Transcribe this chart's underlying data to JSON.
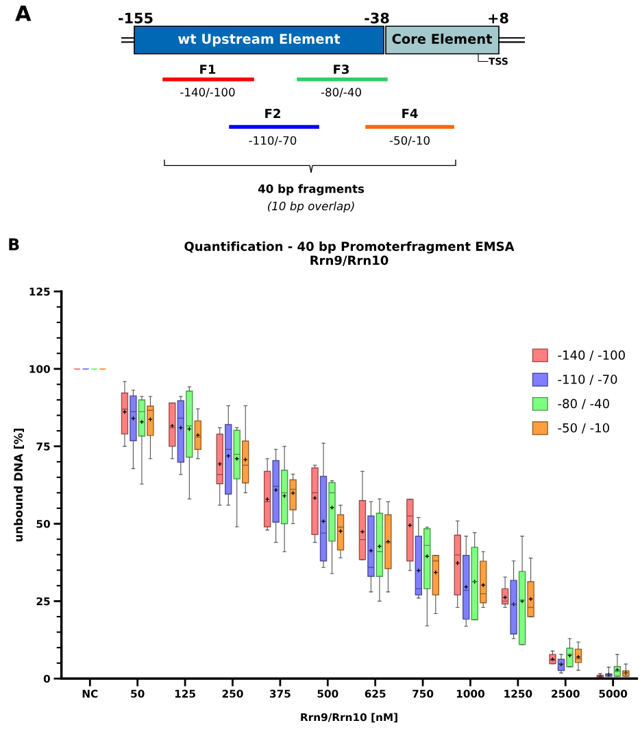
{
  "chart_data": [
    {
      "type": "other",
      "annotations": [
        "A",
        "-155",
        "-38",
        "+8",
        "wt Upstream Element",
        "Core Element",
        "TSS",
        "F1",
        "-140/-100",
        "F2",
        "-110/-70",
        "F3",
        "-80/-40",
        "F4",
        "-50/-10",
        "40 bp fragments",
        "(10 bp overlap)"
      ]
    },
    {
      "type": "box",
      "title": "Quantification - 40 bp Promoterfragment EMSA",
      "subtitle": "Rrn9/Rrn10",
      "xlabel": "Rrn9/Rrn10 [nM]",
      "ylabel": "unbound DNA [%]",
      "annotations": [
        "B"
      ],
      "categories": [
        "NC",
        "50",
        "125",
        "250",
        "375",
        "500",
        "625",
        "750",
        "1000",
        "1250",
        "2500",
        "5000"
      ],
      "ylim": [
        0,
        125
      ],
      "yticks": [
        0,
        {
          "value": 5,
          "label": null
        },
        {
          "value": 10,
          "label": null
        },
        {
          "value": 15,
          "label": null
        },
        {
          "value": 20,
          "label": null
        },
        25,
        {
          "value": 30,
          "label": null
        },
        {
          "value": 35,
          "label": null
        },
        {
          "value": 40,
          "label": null
        },
        {
          "value": 45,
          "label": null
        },
        50,
        {
          "value": 55,
          "label": null
        },
        {
          "value": 60,
          "label": null
        },
        {
          "value": 65,
          "label": null
        },
        {
          "value": 70,
          "label": null
        },
        75,
        {
          "value": 80,
          "label": null
        },
        {
          "value": 85,
          "label": null
        },
        {
          "value": 90,
          "label": null
        },
        {
          "value": 95,
          "label": null
        },
        100,
        {
          "value": 105,
          "label": null
        },
        {
          "value": 110,
          "label": null
        },
        {
          "value": 115,
          "label": null
        },
        {
          "value": 120,
          "label": null
        },
        125
      ],
      "legend": "top right",
      "grid": false,
      "series": [
        {
          "name": "-140 / -100",
          "color": "#ff7f7f",
          "boxes": [
            {
              "low": 100,
              "q1": 100,
              "median": 100,
              "q3": 100,
              "high": 100
            },
            {
              "low": 75.0,
              "q1": 79.0,
              "median": 87.0,
              "q3": 92.2,
              "high": 95.9,
              "mean": 86.1
            },
            {
              "low": 71.0,
              "q1": 75.0,
              "median": 81.0,
              "q3": 89.0,
              "high": 89.0,
              "mean": 81.6
            },
            {
              "low": 56.0,
              "q1": 62.9,
              "median": 65.9,
              "q3": 78.9,
              "high": 81.0,
              "mean": 69.3
            },
            {
              "low": 48.0,
              "q1": 49.0,
              "median": 57.1,
              "q3": 66.9,
              "high": 71.0,
              "mean": 57.9
            },
            {
              "low": 44.0,
              "q1": 46.5,
              "median": 60.0,
              "q3": 68.0,
              "high": 68.9,
              "mean": 58.3
            },
            {
              "low": 38.4,
              "q1": 38.4,
              "median": 44.9,
              "q3": 57.5,
              "high": 66.9,
              "mean": 47.4
            },
            {
              "low": 34.9,
              "q1": 38.0,
              "median": 52.5,
              "q3": 57.9,
              "high": 57.9,
              "mean": 49.5
            },
            {
              "low": 23.0,
              "q1": 27.0,
              "median": 39.9,
              "q3": 46.3,
              "high": 50.9,
              "mean": 37.3
            },
            {
              "low": 23.0,
              "q1": 24.1,
              "median": 25.0,
              "q3": 29.0,
              "high": 32.8,
              "mean": 26.2
            },
            {
              "low": 4.8,
              "q1": 4.8,
              "median": 5.9,
              "q3": 7.8,
              "high": 8.9,
              "mean": 6.2
            },
            {
              "low": 0,
              "q1": 0,
              "median": 0.8,
              "q3": 1.1,
              "high": 1.6,
              "mean": 0.6
            }
          ]
        },
        {
          "name": "-110 / -70",
          "color": "#7f7fff",
          "boxes": [
            {
              "low": 100,
              "q1": 100,
              "median": 100,
              "q3": 100,
              "high": 100
            },
            {
              "low": 67.8,
              "q1": 76.8,
              "median": 86.2,
              "q3": 91.3,
              "high": 93.1,
              "mean": 84.0
            },
            {
              "low": 65.9,
              "q1": 69.9,
              "median": 84.1,
              "q3": 89.7,
              "high": 91.1,
              "mean": 81.0
            },
            {
              "low": 56.0,
              "q1": 59.6,
              "median": 74.0,
              "q3": 82.0,
              "high": 88.1,
              "mean": 71.9
            },
            {
              "low": 44.0,
              "q1": 50.5,
              "median": 62.1,
              "q3": 70.4,
              "high": 74.0,
              "mean": 60.9
            },
            {
              "low": 35.9,
              "q1": 38.0,
              "median": 47.0,
              "q3": 65.3,
              "high": 76.0,
              "mean": 50.8
            },
            {
              "low": 28.0,
              "q1": 33.0,
              "median": 35.9,
              "q3": 52.5,
              "high": 57.1,
              "mean": 41.3
            },
            {
              "low": 26.0,
              "q1": 27.0,
              "median": 29.0,
              "q3": 46.0,
              "high": 52.0,
              "mean": 34.9
            },
            {
              "low": 16.9,
              "q1": 19.2,
              "median": 28.5,
              "q3": 39.8,
              "high": 46.0,
              "mean": 29.6
            },
            {
              "low": 12.9,
              "q1": 14.4,
              "median": 24.0,
              "q3": 31.7,
              "high": 38.0,
              "mean": 24.0
            },
            {
              "low": 1.8,
              "q1": 2.6,
              "median": 4.8,
              "q3": 6.2,
              "high": 7.8,
              "mean": 4.6
            },
            {
              "low": 0.8,
              "q1": 0.8,
              "median": 1.3,
              "q3": 1.5,
              "high": 3.7,
              "mean": 1.3
            }
          ]
        },
        {
          "name": "-80 / -40",
          "color": "#7fff7f",
          "boxes": [
            {
              "low": 100,
              "q1": 100,
              "median": 100,
              "q3": 100,
              "high": 100
            },
            {
              "low": 62.8,
              "q1": 78.3,
              "median": 86.2,
              "q3": 90.0,
              "high": 91.1,
              "mean": 82.9
            },
            {
              "low": 58.0,
              "q1": 71.5,
              "median": 81.6,
              "q3": 92.8,
              "high": 94.2,
              "mean": 80.6
            },
            {
              "low": 49.0,
              "q1": 64.5,
              "median": 72.4,
              "q3": 80.2,
              "high": 81.0,
              "mean": 71.0
            },
            {
              "low": 41.0,
              "q1": 50.0,
              "median": 60.0,
              "q3": 67.3,
              "high": 75.0,
              "mean": 59.0
            },
            {
              "low": 33.9,
              "q1": 44.4,
              "median": 60.0,
              "q3": 63.3,
              "high": 63.9,
              "mean": 55.2
            },
            {
              "low": 25.0,
              "q1": 33.0,
              "median": 41.0,
              "q3": 53.4,
              "high": 58.0,
              "mean": 42.7
            },
            {
              "low": 17.0,
              "q1": 29.0,
              "median": 43.0,
              "q3": 48.4,
              "high": 48.9,
              "mean": 39.5
            },
            {
              "low": 19.0,
              "q1": 19.0,
              "median": 31.3,
              "q3": 42.4,
              "high": 47.1,
              "mean": 31.3
            },
            {
              "low": 11.0,
              "q1": 11.0,
              "median": 25.4,
              "q3": 34.6,
              "high": 46.0,
              "mean": 25.0
            },
            {
              "low": 3.8,
              "q1": 3.8,
              "median": 7.9,
              "q3": 9.8,
              "high": 12.9,
              "mean": 7.5
            },
            {
              "low": 0.8,
              "q1": 0.8,
              "median": 2.4,
              "q3": 3.9,
              "high": 7.8,
              "mean": 2.8
            }
          ]
        },
        {
          "name": "-50 / -10",
          "color": "#ffa040",
          "boxes": [
            {
              "low": 100,
              "q1": 100,
              "median": 100,
              "q3": 100,
              "high": 100
            },
            {
              "low": 71.0,
              "q1": 78.5,
              "median": 86.6,
              "q3": 88.0,
              "high": 91.1,
              "mean": 83.7
            },
            {
              "low": 71.0,
              "q1": 74.0,
              "median": 78.0,
              "q3": 83.2,
              "high": 87.1,
              "mean": 78.6
            },
            {
              "low": 60.0,
              "q1": 63.2,
              "median": 68.9,
              "q3": 76.7,
              "high": 88.1,
              "mean": 70.7
            },
            {
              "low": 50.0,
              "q1": 54.5,
              "median": 61.1,
              "q3": 64.2,
              "high": 66.0,
              "mean": 59.9
            },
            {
              "low": 39.0,
              "q1": 41.5,
              "median": 48.9,
              "q3": 52.9,
              "high": 56.0,
              "mean": 47.6
            },
            {
              "low": 28.0,
              "q1": 35.5,
              "median": 43.9,
              "q3": 52.9,
              "high": 57.1,
              "mean": 44.2
            },
            {
              "low": 21.0,
              "q1": 27.0,
              "median": 38.0,
              "q3": 39.8,
              "high": 39.8,
              "mean": 34.3
            },
            {
              "low": 23.0,
              "q1": 24.5,
              "median": 27.4,
              "q3": 37.9,
              "high": 41.0,
              "mean": 30.2
            },
            {
              "low": 20.0,
              "q1": 20.0,
              "median": 23.0,
              "q3": 31.3,
              "high": 38.9,
              "mean": 25.7
            },
            {
              "low": 2.7,
              "q1": 5.2,
              "median": 6.4,
              "q3": 9.5,
              "high": 11.8,
              "mean": 7.0
            },
            {
              "low": 0.8,
              "q1": 0.8,
              "median": 1.8,
              "q3": 2.5,
              "high": 4.7,
              "mean": 1.8
            }
          ]
        }
      ]
    }
  ]
}
